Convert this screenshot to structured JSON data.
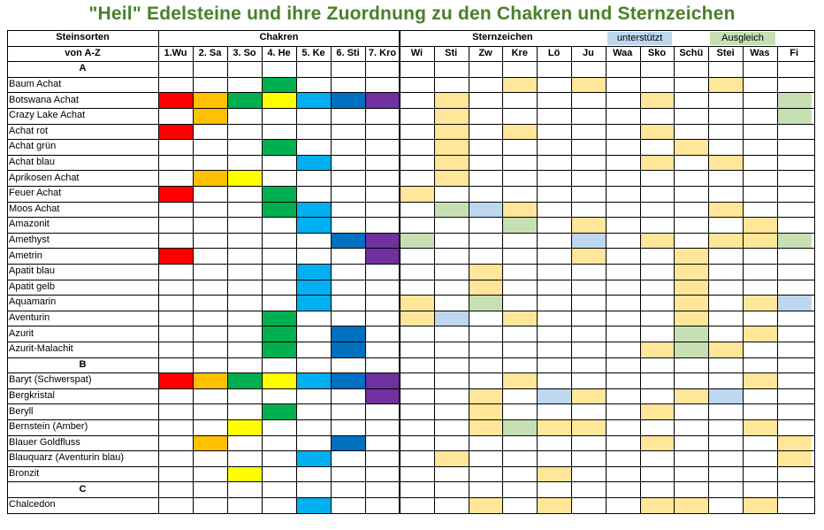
{
  "title": "\"Heil\" Edelsteine und ihre Zuordnung zu den Chakren und Sternzeichen",
  "header": {
    "stones_label": "Steinsorten",
    "stones_sub": "von A-Z",
    "chakra_label": "Chakren",
    "zodiac_label": "Sternzeichen",
    "legend_support": "unterstützt",
    "legend_balance": "Ausgleich"
  },
  "colors": {
    "r": "#ff0000",
    "o": "#ffc000",
    "y": "#ffff00",
    "g": "#00b050",
    "c": "#00b0f0",
    "b": "#0070c0",
    "p": "#7030a0",
    "Y": "#ffe699",
    "G": "#c6e0b4",
    "B": "#bdd7ee",
    "title": "#4a7f2a"
  },
  "chakras": [
    "1.Wu",
    "2. Sa",
    "3. So",
    "4. He",
    "5. Ke",
    "6. Sti",
    "7. Kro"
  ],
  "zodiac": [
    "Wi",
    "Sti",
    "Zw",
    "Kre",
    "Lö",
    "Ju",
    "Waa",
    "Sko",
    "Schü",
    "Stei",
    "Was",
    "Fi"
  ],
  "rows": [
    {
      "section": "A"
    },
    {
      "name": "Baum Achat",
      "chakra": "...g...",
      "zodiac": "...Y.Y...Y.."
    },
    {
      "name": "Botswana Achat",
      "chakra": "rogycbp",
      "zodiac": ".Y.....Y...G"
    },
    {
      "name": "Crazy Lake Achat",
      "chakra": ".o.....",
      "zodiac": ".Y.........G"
    },
    {
      "name": "Achat rot",
      "chakra": "r......",
      "zodiac": ".Y.Y...Y...."
    },
    {
      "name": "Achat grün",
      "chakra": "...g...",
      "zodiac": ".Y......Y..."
    },
    {
      "name": "Achat blau",
      "chakra": "....c..",
      "zodiac": ".Y.....Y.Y.."
    },
    {
      "name": "Aprikosen Achat",
      "chakra": ".oy....",
      "zodiac": ".Y.........."
    },
    {
      "name": "Feuer Achat",
      "chakra": "r..g...",
      "zodiac": "Y..........."
    },
    {
      "name": "Moos Achat",
      "chakra": "...gc..",
      "zodiac": ".GBY.....Y.."
    },
    {
      "name": "Amazonit",
      "chakra": "....c..",
      "zodiac": "...G.Y....Y."
    },
    {
      "name": "Amethyst",
      "chakra": ".....bp",
      "zodiac": "G....B.Y.YYG"
    },
    {
      "name": "Ametrin",
      "chakra": "r.....p",
      "zodiac": ".....Y..Y..."
    },
    {
      "name": "Apatit blau",
      "chakra": "....c..",
      "zodiac": "..Y.....Y..."
    },
    {
      "name": "Apatit gelb",
      "chakra": "....c..",
      "zodiac": "..Y.....Y..."
    },
    {
      "name": "Aquamarin",
      "chakra": "....c..",
      "zodiac": "Y.G.....Y.YB"
    },
    {
      "name": "Aventurin",
      "chakra": "...g...",
      "zodiac": "YB.Y....Y..."
    },
    {
      "name": "Azurit",
      "chakra": "...g.b.",
      "zodiac": "........G.Y."
    },
    {
      "name": "Azurit-Malachit",
      "chakra": "...g.b.",
      "zodiac": ".......YGY.."
    },
    {
      "section": "B"
    },
    {
      "name": "Baryt (Schwerspat)",
      "chakra": "rogycbp",
      "zodiac": "...Y......Y."
    },
    {
      "name": "Bergkristal",
      "chakra": "......p",
      "zodiac": "..Y.BY..YB.."
    },
    {
      "name": "Beryll",
      "chakra": "...g...",
      "zodiac": "..Y....Y...."
    },
    {
      "name": "Bernstein (Amber)",
      "chakra": "..y....",
      "zodiac": "..YGYY....Y."
    },
    {
      "name": "Blauer Goldfluss",
      "chakra": ".o...b.",
      "zodiac": ".......Y...Y"
    },
    {
      "name": "Blauquarz (Aventurin blau)",
      "chakra": "....c..",
      "zodiac": ".Y.........Y"
    },
    {
      "name": "Bronzit",
      "chakra": "..y....",
      "zodiac": "....Y......."
    },
    {
      "section": "C"
    },
    {
      "name": "Chalcedon",
      "chakra": "....c..",
      "zodiac": "..Y.Y..YY.Y."
    }
  ]
}
